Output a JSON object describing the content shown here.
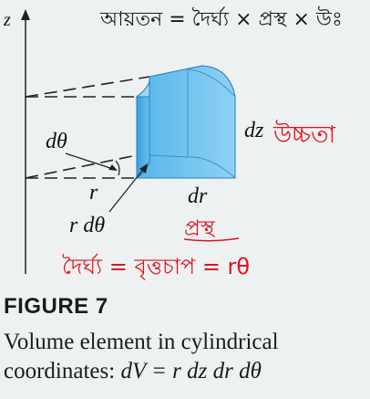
{
  "figure": {
    "axis_label": "z",
    "labels": {
      "d_theta": "dθ",
      "r": "r",
      "r_d_theta": "r dθ",
      "dr": "dr",
      "dz": "dz"
    }
  },
  "handwriting": {
    "top_note": "আয়তন = দৈর্ঘ্য × প্রস্থ × উঃ",
    "height_note": "উচ্চতা",
    "width_note": "প্রস্থ",
    "length_note": "দৈর্ঘ্য = বৃত্তচাপ = rθ",
    "ink_colors": {
      "black": "#1a1a1a",
      "red": "#e0121c"
    }
  },
  "caption": {
    "figure_label": "FIGURE 7",
    "line1": "Volume element in cylindrical",
    "line2_prefix": "coordinates: ",
    "equation": "dV = r dz dr dθ"
  }
}
